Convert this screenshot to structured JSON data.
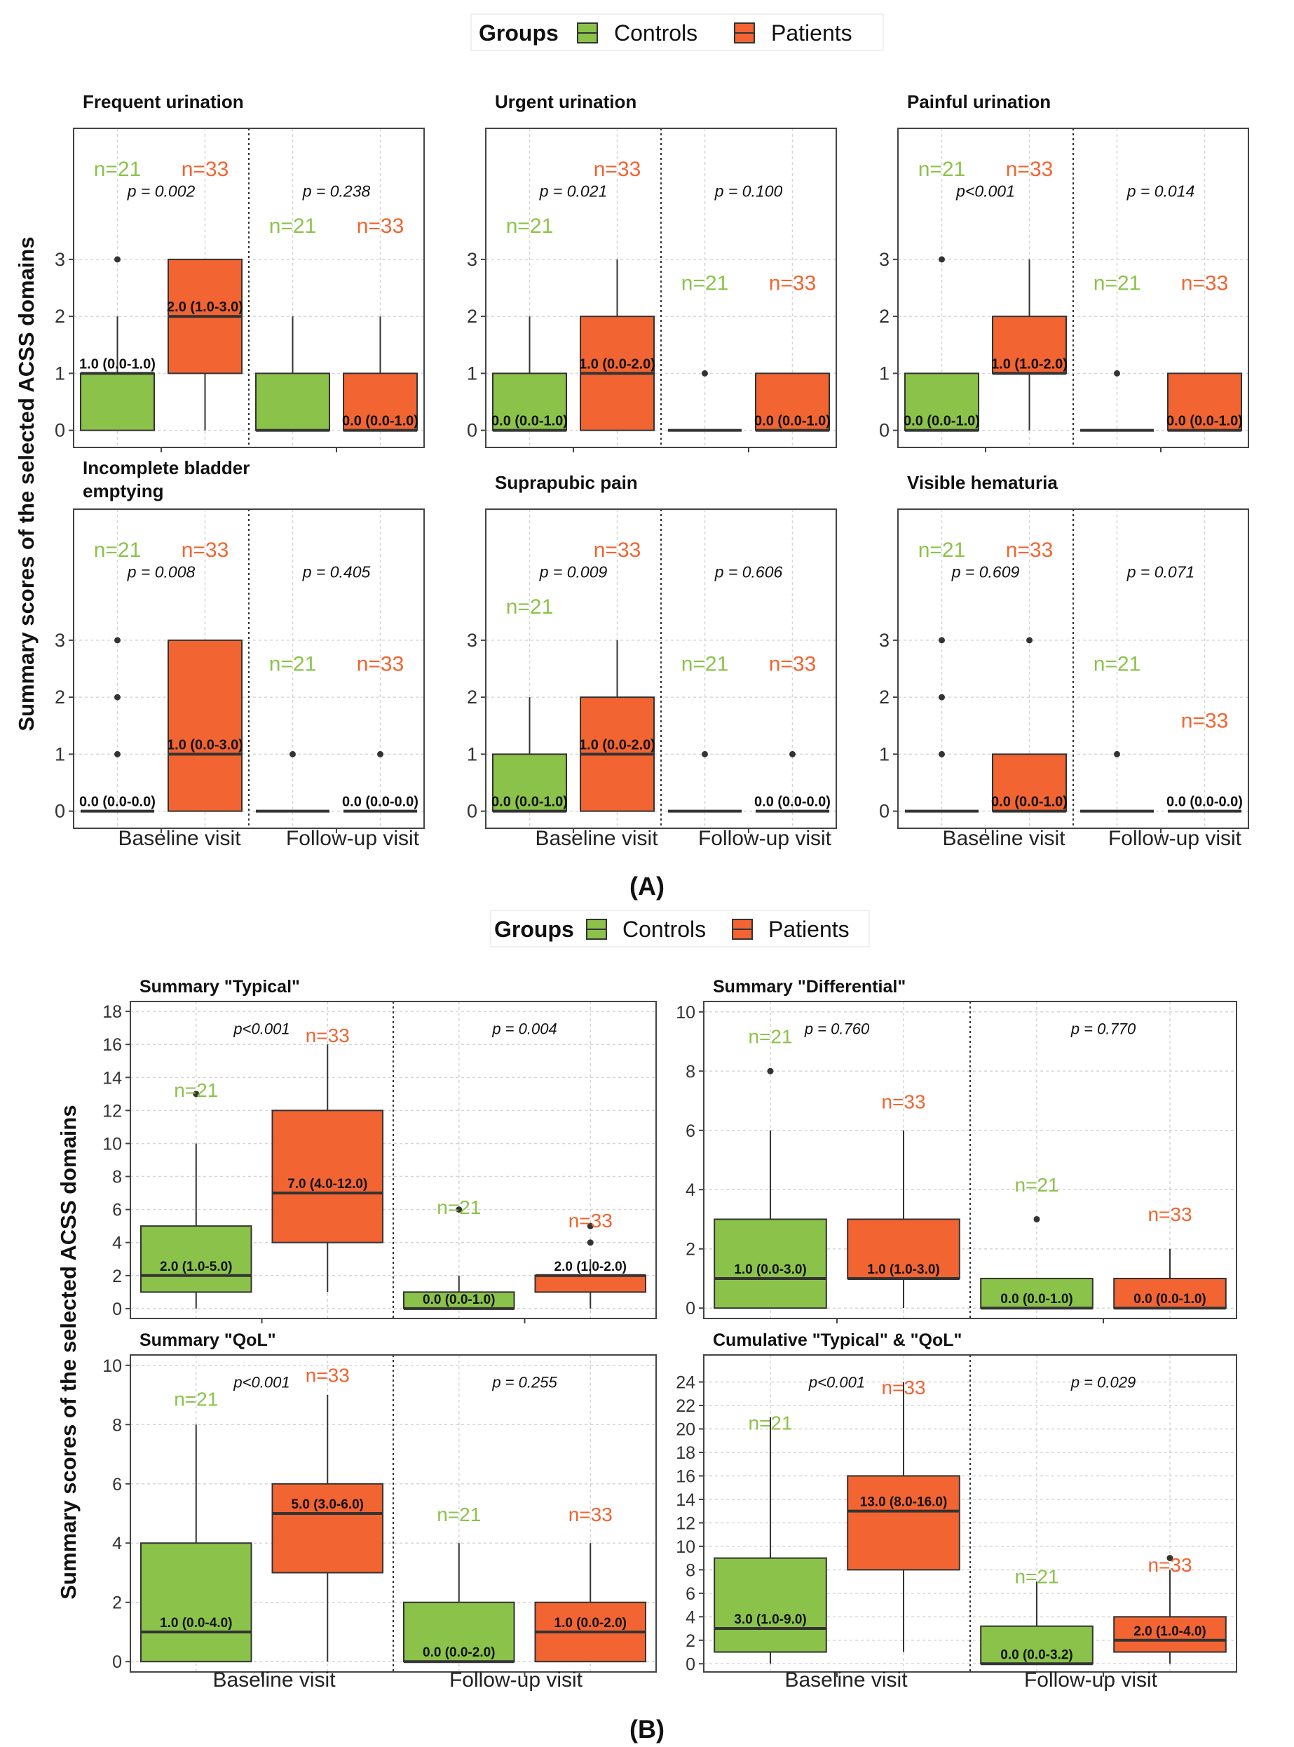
{
  "panel_a": {
    "legend": {
      "title": "Groups",
      "labels": [
        "Controls",
        "Patients"
      ]
    },
    "ylabel": "Summary scores of the selected ACSS domains",
    "x_categories": [
      "Baseline visit",
      "Follow-up visit"
    ],
    "caption": "(A)"
  },
  "panel_b": {
    "legend": {
      "title": "Groups",
      "labels": [
        "Controls",
        "Patients"
      ]
    },
    "ylabel": "Summary scores of the selected ACSS domains",
    "x_categories": [
      "Baseline visit",
      "Follow-up visit"
    ],
    "caption": "(B)"
  },
  "colors": {
    "controls": "#8BC34A",
    "patients": "#F26432",
    "controls_text": "#8BC34A",
    "patients_text": "#F2642F"
  },
  "chart_data": [
    {
      "type": "box",
      "title": "Frequent urination",
      "ylim": [
        -0.3,
        5.3
      ],
      "yticks": [
        0,
        1,
        2,
        3
      ],
      "groups": [
        {
          "visit": "Baseline visit",
          "p": "p = 0.002",
          "controls": {
            "n": "n=21",
            "n_y": 4.6,
            "label": "1.0 (0.0-1.0)",
            "q1": 0,
            "median": 1,
            "q3": 1,
            "whisker_low": 0,
            "whisker_high": 2,
            "outliers": [
              3
            ]
          },
          "patients": {
            "n": "n=33",
            "n_y": 4.6,
            "label": "2.0 (1.0-3.0)",
            "q1": 1,
            "median": 2,
            "q3": 3,
            "whisker_low": 0,
            "whisker_high": 3,
            "outliers": []
          }
        },
        {
          "visit": "Follow-up visit",
          "p": "p = 0.238",
          "controls": {
            "n": "n=21",
            "n_y": 3.6,
            "label": "",
            "q1": 0,
            "median": 0,
            "q3": 1,
            "whisker_low": 0,
            "whisker_high": 2,
            "outliers": []
          },
          "patients": {
            "n": "n=33",
            "n_y": 3.6,
            "label": "0.0 (0.0-1.0)",
            "q1": 0,
            "median": 0,
            "q3": 1,
            "whisker_low": 0,
            "whisker_high": 2,
            "outliers": []
          }
        }
      ]
    },
    {
      "type": "box",
      "title": "Urgent urination",
      "ylim": [
        -0.3,
        5.3
      ],
      "yticks": [
        0,
        1,
        2,
        3
      ],
      "groups": [
        {
          "visit": "Baseline visit",
          "p": "p = 0.021",
          "controls": {
            "n": "n=21",
            "n_y": 3.6,
            "label": "0.0 (0.0-1.0)",
            "q1": 0,
            "median": 0,
            "q3": 1,
            "whisker_low": 0,
            "whisker_high": 2,
            "outliers": []
          },
          "patients": {
            "n": "n=33",
            "n_y": 4.6,
            "label": "1.0 (0.0-2.0)",
            "q1": 0,
            "median": 1,
            "q3": 2,
            "whisker_low": 0,
            "whisker_high": 3,
            "outliers": []
          }
        },
        {
          "visit": "Follow-up visit",
          "p": "p = 0.100",
          "controls": {
            "n": "n=21",
            "n_y": 2.6,
            "label": "",
            "q1": 0,
            "median": 0,
            "q3": 0,
            "whisker_low": 0,
            "whisker_high": 0,
            "outliers": [
              1
            ]
          },
          "patients": {
            "n": "n=33",
            "n_y": 2.6,
            "label": "0.0 (0.0-1.0)",
            "q1": 0,
            "median": 0,
            "q3": 1,
            "whisker_low": 0,
            "whisker_high": 1,
            "outliers": []
          }
        }
      ]
    },
    {
      "type": "box",
      "title": "Painful urination",
      "ylim": [
        -0.3,
        5.3
      ],
      "yticks": [
        0,
        1,
        2,
        3
      ],
      "groups": [
        {
          "visit": "Baseline visit",
          "p": "p<0.001",
          "controls": {
            "n": "n=21",
            "n_y": 4.6,
            "label": "0.0 (0.0-1.0)",
            "q1": 0,
            "median": 0,
            "q3": 1,
            "whisker_low": 0,
            "whisker_high": 1,
            "outliers": [
              3
            ]
          },
          "patients": {
            "n": "n=33",
            "n_y": 4.6,
            "label": "1.0 (1.0-2.0)",
            "q1": 1,
            "median": 1,
            "q3": 2,
            "whisker_low": 0,
            "whisker_high": 3,
            "outliers": []
          }
        },
        {
          "visit": "Follow-up visit",
          "p": "p = 0.014",
          "controls": {
            "n": "n=21",
            "n_y": 2.6,
            "label": "",
            "q1": 0,
            "median": 0,
            "q3": 0,
            "whisker_low": 0,
            "whisker_high": 0,
            "outliers": [
              1
            ]
          },
          "patients": {
            "n": "n=33",
            "n_y": 2.6,
            "label": "0.0 (0.0-1.0)",
            "q1": 0,
            "median": 0,
            "q3": 1,
            "whisker_low": 0,
            "whisker_high": 1,
            "outliers": []
          }
        }
      ]
    },
    {
      "type": "box",
      "title": "Incomplete bladder emptying",
      "ylim": [
        -0.3,
        5.3
      ],
      "yticks": [
        0,
        1,
        2,
        3
      ],
      "groups": [
        {
          "visit": "Baseline visit",
          "p": "p = 0.008",
          "controls": {
            "n": "n=21",
            "n_y": 4.6,
            "label": "0.0 (0.0-0.0)",
            "q1": 0,
            "median": 0,
            "q3": 0,
            "whisker_low": 0,
            "whisker_high": 0,
            "outliers": [
              1,
              2,
              3
            ]
          },
          "patients": {
            "n": "n=33",
            "n_y": 4.6,
            "label": "1.0 (0.0-3.0)",
            "q1": 0,
            "median": 1,
            "q3": 3,
            "whisker_low": 0,
            "whisker_high": 3,
            "outliers": []
          }
        },
        {
          "visit": "Follow-up visit",
          "p": "p = 0.405",
          "controls": {
            "n": "n=21",
            "n_y": 2.6,
            "label": "",
            "q1": 0,
            "median": 0,
            "q3": 0,
            "whisker_low": 0,
            "whisker_high": 0,
            "outliers": [
              1
            ]
          },
          "patients": {
            "n": "n=33",
            "n_y": 2.6,
            "label": "0.0 (0.0-0.0)",
            "q1": 0,
            "median": 0,
            "q3": 0,
            "whisker_low": 0,
            "whisker_high": 0,
            "outliers": [
              1
            ]
          }
        }
      ]
    },
    {
      "type": "box",
      "title": "Suprapubic pain",
      "ylim": [
        -0.3,
        5.3
      ],
      "yticks": [
        0,
        1,
        2,
        3
      ],
      "groups": [
        {
          "visit": "Baseline visit",
          "p": "p = 0.009",
          "controls": {
            "n": "n=21",
            "n_y": 3.6,
            "label": "0.0 (0.0-1.0)",
            "q1": 0,
            "median": 0,
            "q3": 1,
            "whisker_low": 0,
            "whisker_high": 2,
            "outliers": []
          },
          "patients": {
            "n": "n=33",
            "n_y": 4.6,
            "label": "1.0 (0.0-2.0)",
            "q1": 0,
            "median": 1,
            "q3": 2,
            "whisker_low": 0,
            "whisker_high": 3,
            "outliers": []
          }
        },
        {
          "visit": "Follow-up visit",
          "p": "p = 0.606",
          "controls": {
            "n": "n=21",
            "n_y": 2.6,
            "label": "",
            "q1": 0,
            "median": 0,
            "q3": 0,
            "whisker_low": 0,
            "whisker_high": 0,
            "outliers": [
              1
            ]
          },
          "patients": {
            "n": "n=33",
            "n_y": 2.6,
            "label": "0.0 (0.0-0.0)",
            "q1": 0,
            "median": 0,
            "q3": 0,
            "whisker_low": 0,
            "whisker_high": 0,
            "outliers": [
              1
            ]
          }
        }
      ]
    },
    {
      "type": "box",
      "title": "Visible hematuria",
      "ylim": [
        -0.3,
        5.3
      ],
      "yticks": [
        0,
        1,
        2,
        3
      ],
      "groups": [
        {
          "visit": "Baseline visit",
          "p": "p = 0.609",
          "controls": {
            "n": "n=21",
            "n_y": 4.6,
            "label": "",
            "q1": 0,
            "median": 0,
            "q3": 0,
            "whisker_low": 0,
            "whisker_high": 0,
            "outliers": [
              1,
              2,
              3
            ]
          },
          "patients": {
            "n": "n=33",
            "n_y": 4.6,
            "label": "0.0 (0.0-1.0)",
            "q1": 0,
            "median": 0,
            "q3": 1,
            "whisker_low": 0,
            "whisker_high": 1,
            "outliers": [
              3
            ]
          }
        },
        {
          "visit": "Follow-up visit",
          "p": "p = 0.071",
          "controls": {
            "n": "n=21",
            "n_y": 2.6,
            "label": "",
            "q1": 0,
            "median": 0,
            "q3": 0,
            "whisker_low": 0,
            "whisker_high": 0,
            "outliers": [
              1
            ]
          },
          "patients": {
            "n": "n=33",
            "n_y": 1.6,
            "label": "0.0 (0.0-0.0)",
            "q1": 0,
            "median": 0,
            "q3": 0,
            "whisker_low": 0,
            "whisker_high": 0,
            "outliers": []
          }
        }
      ]
    },
    {
      "type": "box",
      "title": "Summary \"Typical\"",
      "ylim": [
        -0.6,
        18.6
      ],
      "yticks": [
        0,
        2,
        4,
        6,
        8,
        10,
        12,
        14,
        16,
        18
      ],
      "groups": [
        {
          "visit": "Baseline visit",
          "p": "p<0.001",
          "controls": {
            "n": "n=21",
            "n_y": 13.3,
            "label": "2.0 (1.0-5.0)",
            "q1": 1,
            "median": 2,
            "q3": 5,
            "whisker_low": 0,
            "whisker_high": 10,
            "outliers": [
              13
            ]
          },
          "patients": {
            "n": "n=33",
            "n_y": 16.6,
            "label": "7.0 (4.0-12.0)",
            "q1": 4,
            "median": 7,
            "q3": 12,
            "whisker_low": 1,
            "whisker_high": 16,
            "outliers": []
          }
        },
        {
          "visit": "Follow-up visit",
          "p": "p = 0.004",
          "controls": {
            "n": "n=21",
            "n_y": 6.2,
            "label": "0.0 (0.0-1.0)",
            "q1": 0,
            "median": 0,
            "q3": 1,
            "whisker_low": 0,
            "whisker_high": 2,
            "outliers": [
              6
            ]
          },
          "patients": {
            "n": "n=33",
            "n_y": 5.4,
            "label": "2.0 (1.0-2.0)",
            "q1": 1,
            "median": 2,
            "q3": 2,
            "whisker_low": 0,
            "whisker_high": 3,
            "outliers": [
              4,
              5
            ]
          }
        }
      ]
    },
    {
      "type": "box",
      "title": "Summary \"Differential\"",
      "ylim": [
        -0.35,
        10.35
      ],
      "yticks": [
        0,
        2,
        4,
        6,
        8,
        10
      ],
      "groups": [
        {
          "visit": "Baseline visit",
          "p": "p = 0.760",
          "controls": {
            "n": "n=21",
            "n_y": 9.2,
            "label": "1.0 (0.0-3.0)",
            "q1": 0,
            "median": 1,
            "q3": 3,
            "whisker_low": 0,
            "whisker_high": 6,
            "outliers": [
              8
            ]
          },
          "patients": {
            "n": "n=33",
            "n_y": 7.0,
            "label": "1.0 (1.0-3.0)",
            "q1": 1,
            "median": 1,
            "q3": 3,
            "whisker_low": 0,
            "whisker_high": 6,
            "outliers": []
          }
        },
        {
          "visit": "Follow-up visit",
          "p": "p = 0.770",
          "controls": {
            "n": "n=21",
            "n_y": 4.2,
            "label": "0.0 (0.0-1.0)",
            "q1": 0,
            "median": 0,
            "q3": 1,
            "whisker_low": 0,
            "whisker_high": 1,
            "outliers": [
              3
            ]
          },
          "patients": {
            "n": "n=33",
            "n_y": 3.2,
            "label": "0.0 (0.0-1.0)",
            "q1": 0,
            "median": 0,
            "q3": 1,
            "whisker_low": 0,
            "whisker_high": 2,
            "outliers": []
          }
        }
      ]
    },
    {
      "type": "box",
      "title": "Summary \"QoL\"",
      "ylim": [
        -0.35,
        10.35
      ],
      "yticks": [
        0,
        2,
        4,
        6,
        8,
        10
      ],
      "groups": [
        {
          "visit": "Baseline visit",
          "p": "p<0.001",
          "controls": {
            "n": "n=21",
            "n_y": 8.9,
            "label": "1.0 (0.0-4.0)",
            "q1": 0,
            "median": 1,
            "q3": 4,
            "whisker_low": 0,
            "whisker_high": 8,
            "outliers": []
          },
          "patients": {
            "n": "n=33",
            "n_y": 9.7,
            "label": "5.0 (3.0-6.0)",
            "q1": 3,
            "median": 5,
            "q3": 6,
            "whisker_low": 0,
            "whisker_high": 9,
            "outliers": []
          }
        },
        {
          "visit": "Follow-up visit",
          "p": "p = 0.255",
          "controls": {
            "n": "n=21",
            "n_y": 5.0,
            "label": "0.0 (0.0-2.0)",
            "q1": 0,
            "median": 0,
            "q3": 2,
            "whisker_low": 0,
            "whisker_high": 4,
            "outliers": []
          },
          "patients": {
            "n": "n=33",
            "n_y": 5.0,
            "label": "1.0 (0.0-2.0)",
            "q1": 0,
            "median": 1,
            "q3": 2,
            "whisker_low": 0,
            "whisker_high": 4,
            "outliers": []
          }
        }
      ]
    },
    {
      "type": "box",
      "title": "Cumulative \"Typical\" & \"QoL\"",
      "ylim": [
        -0.7,
        26.3
      ],
      "yticks": [
        0,
        2,
        4,
        6,
        8,
        10,
        12,
        14,
        16,
        18,
        20,
        22,
        24
      ],
      "groups": [
        {
          "visit": "Baseline visit",
          "p": "p<0.001",
          "controls": {
            "n": "n=21",
            "n_y": 20.6,
            "label": "3.0 (1.0-9.0)",
            "q1": 1,
            "median": 3,
            "q3": 9,
            "whisker_low": 0,
            "whisker_high": 21,
            "outliers": []
          },
          "patients": {
            "n": "n=33",
            "n_y": 23.6,
            "label": "13.0 (8.0-16.0)",
            "q1": 8,
            "median": 13,
            "q3": 16,
            "whisker_low": 1,
            "whisker_high": 24,
            "outliers": []
          }
        },
        {
          "visit": "Follow-up visit",
          "p": "p = 0.029",
          "controls": {
            "n": "n=21",
            "n_y": 7.5,
            "label": "0.0 (0.0-3.2)",
            "q1": 0,
            "median": 0,
            "q3": 3.2,
            "whisker_low": 0,
            "whisker_high": 7,
            "outliers": []
          },
          "patients": {
            "n": "n=33",
            "n_y": 8.5,
            "label": "2.0 (1.0-4.0)",
            "q1": 1,
            "median": 2,
            "q3": 4,
            "whisker_low": 0,
            "whisker_high": 8,
            "outliers": [
              9
            ]
          }
        }
      ]
    }
  ]
}
